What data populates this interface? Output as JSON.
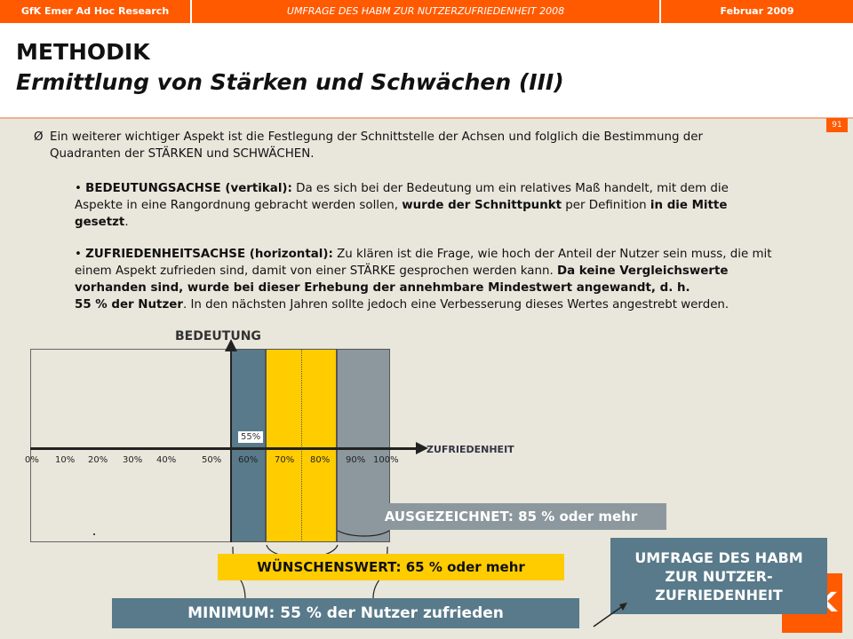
{
  "topbar": {
    "left": "GfK Emer Ad Hoc Research",
    "center": "UMFRAGE DES HABM ZUR NUTZERZUFRIEDENHEIT 2008",
    "right": "Februar 2009"
  },
  "header": {
    "title": "METHODIK",
    "subtitle": "Ermittlung von Stärken und Schwächen (III)",
    "page_number": "91"
  },
  "intro": {
    "bullet": "Ø",
    "text": "Ein weiterer wichtiger Aspekt ist die Festlegung der Schnittstelle der Achsen und folglich die Bestimmung der Quadranten der STÄRKEN und SCHWÄCHEN."
  },
  "para1": {
    "bold_lead": "BEDEUTUNGSACHSE (vertikal):",
    "text1": " Da es sich bei der Bedeutung um ein relatives Maß handelt, mit dem die Aspekte in eine Rangordnung gebracht werden sollen, ",
    "bold2": "wurde der Schnittpunkt",
    "text2": " per Definition ",
    "bold3": "in die Mitte gesetzt",
    "text3": "."
  },
  "para2": {
    "bold_lead": "ZUFRIEDENHEITSACHSE (horizontal):",
    "text1": " Zu klären ist die Frage, wie hoch der Anteil der Nutzer sein muss, die mit einem Aspekt zufrieden sind, damit von einer STÄRKE gesprochen werden kann. ",
    "bold2": "Da keine Vergleichswerte vorhanden sind, wurde bei dieser Erhebung der annehmbare Mindestwert angewandt, d. h.",
    "bold3": "55 % der Nutzer",
    "text3": ". In den nächsten Jahren sollte jedoch eine Verbesserung dieses Wertes angestrebt werden."
  },
  "chart_data": {
    "type": "diagram",
    "y_axis_label": "BEDEUTUNG",
    "x_axis_label": "ZUFRIEDENHEIT",
    "x_ticks": [
      "0%",
      "10%",
      "20%",
      "30%",
      "40%",
      "50%",
      "60%",
      "70%",
      "80%",
      "90%",
      "100%"
    ],
    "x_range": [
      0,
      100
    ],
    "intersection_label": "55%",
    "intersection_value": 55,
    "bands": [
      {
        "from": 55,
        "to": 65,
        "color": "#587a8a",
        "label": "MINIMUM: 55 % der Nutzer zufrieden"
      },
      {
        "from": 65,
        "to": 85,
        "color": "#ffcc00",
        "label": "WÜNSCHENSWERT: 65 % oder mehr"
      },
      {
        "from": 85,
        "to": 100,
        "color": "#8c989e",
        "label": "AUSGEZEICHNET: 85 % oder mehr"
      }
    ]
  },
  "callout": {
    "text_lines": [
      "UMFRAGE DES HABM",
      "ZUR NUTZER-",
      "ZUFRIEDENHEIT"
    ]
  },
  "colors": {
    "accent": "#ff5a00",
    "blue_band": "#587a8a",
    "yellow_band": "#ffcc00",
    "gray_band": "#8c989e"
  }
}
